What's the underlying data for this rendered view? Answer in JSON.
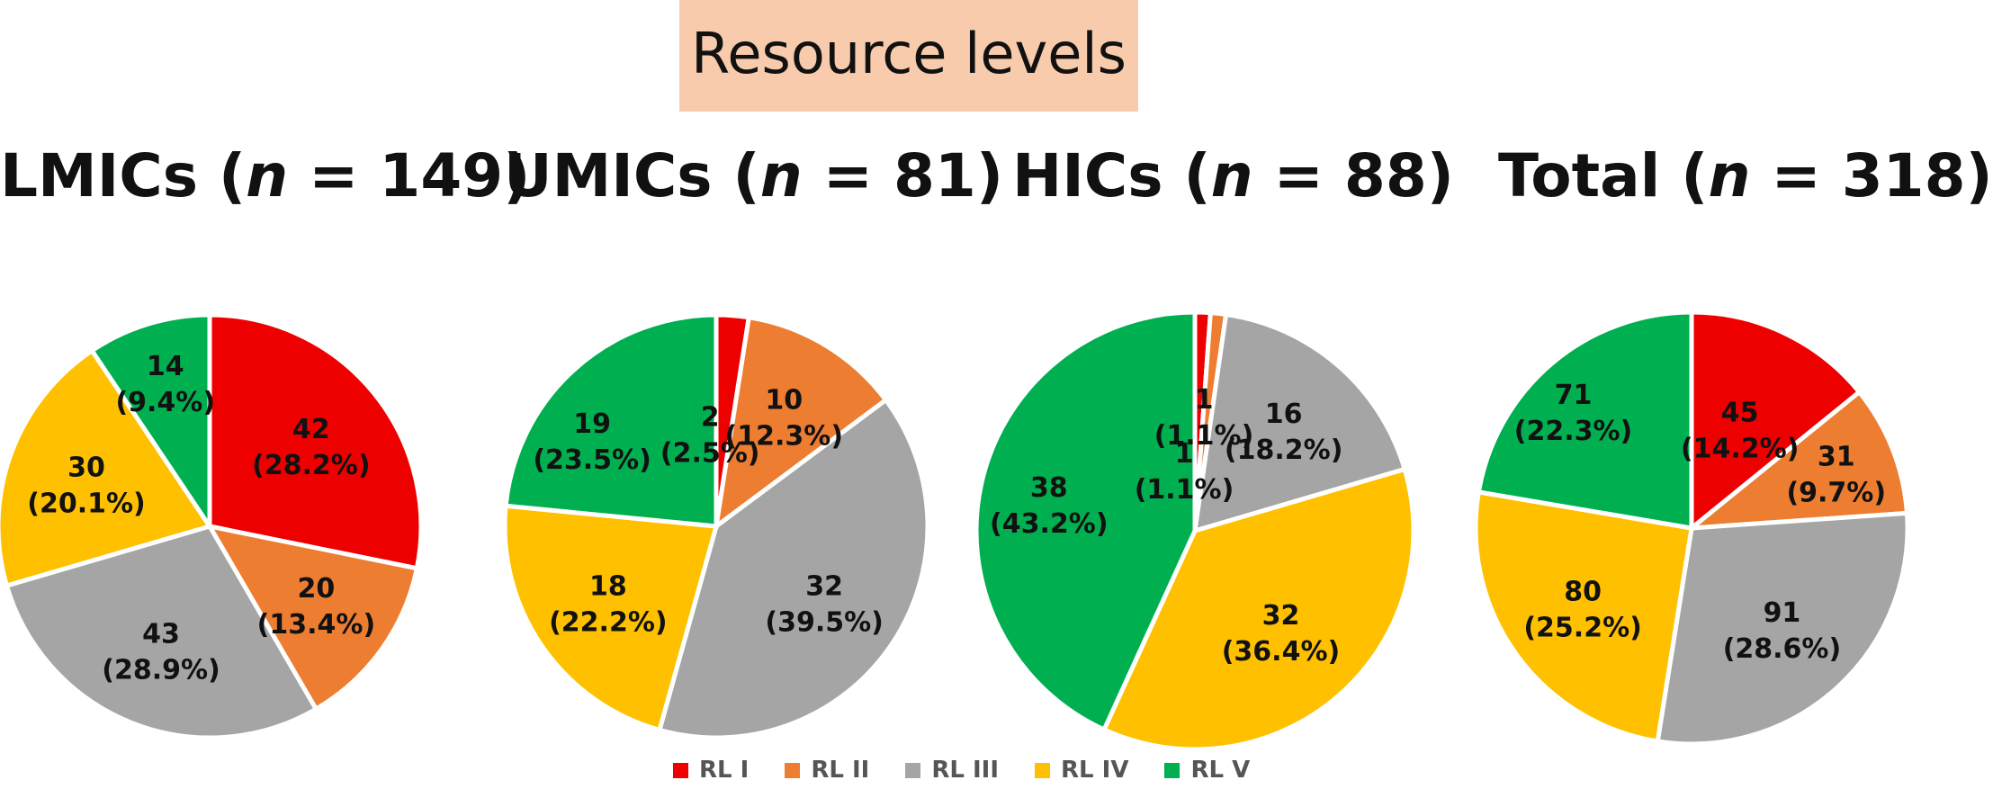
{
  "header": {
    "title": "Resource levels"
  },
  "legend": [
    {
      "label": "RL I",
      "color": "#EE0000"
    },
    {
      "label": "RL II",
      "color": "#ED7D31"
    },
    {
      "label": "RL III",
      "color": "#A5A5A5"
    },
    {
      "label": "RL IV",
      "color": "#FFC000"
    },
    {
      "label": "RL V",
      "color": "#00B050"
    }
  ],
  "chart_data": [
    {
      "type": "pie",
      "title": {
        "name": "LMICs",
        "n_prefix": "n",
        "n_text": " = 149)"
      },
      "categories": [
        "RL I",
        "RL II",
        "RL III",
        "RL IV",
        "RL V"
      ],
      "values": [
        42,
        20,
        43,
        30,
        14
      ],
      "labels": [
        [
          "42",
          "(28.2%)"
        ],
        [
          "20",
          "(13.4%)"
        ],
        [
          "43",
          "(28.9%)"
        ],
        [
          "30",
          "(20.1%)"
        ],
        [
          "14",
          "(9.4%)"
        ]
      ]
    },
    {
      "type": "pie",
      "title": {
        "name": "UMICs",
        "n_prefix": "n",
        "n_text": " = 81)"
      },
      "categories": [
        "RL I",
        "RL II",
        "RL III",
        "RL IV",
        "RL V"
      ],
      "values": [
        2,
        10,
        32,
        18,
        19
      ],
      "labels": [
        [
          "2",
          "(2.5%)"
        ],
        [
          "10",
          "(12.3%)"
        ],
        [
          "32",
          "(39.5%)"
        ],
        [
          "18",
          "(22.2%)"
        ],
        [
          "19",
          "(23.5%)"
        ]
      ]
    },
    {
      "type": "pie",
      "title": {
        "name": "HICs",
        "n_prefix": "n",
        "n_text": " = 88)"
      },
      "categories": [
        "RL I",
        "RL II",
        "RL III",
        "RL IV",
        "RL V"
      ],
      "values": [
        1,
        1,
        16,
        32,
        38
      ],
      "labels": [
        [
          "1",
          "(1.1%)"
        ],
        [
          "1",
          "(1.1%)"
        ],
        [
          "16",
          "(18.2%)"
        ],
        [
          "32",
          "(36.4%)"
        ],
        [
          "38",
          "(43.2%)"
        ]
      ]
    },
    {
      "type": "pie",
      "title": {
        "name": "Total",
        "n_prefix": "n",
        "n_text": " = 318)"
      },
      "categories": [
        "RL I",
        "RL II",
        "RL III",
        "RL IV",
        "RL V"
      ],
      "values": [
        45,
        31,
        91,
        80,
        71
      ],
      "labels": [
        [
          "45",
          "(14.2%)"
        ],
        [
          "31",
          "(9.7%)"
        ],
        [
          "91",
          "(28.6%)"
        ],
        [
          "80",
          "(25.2%)"
        ],
        [
          "71",
          "(22.3%)"
        ]
      ]
    }
  ]
}
